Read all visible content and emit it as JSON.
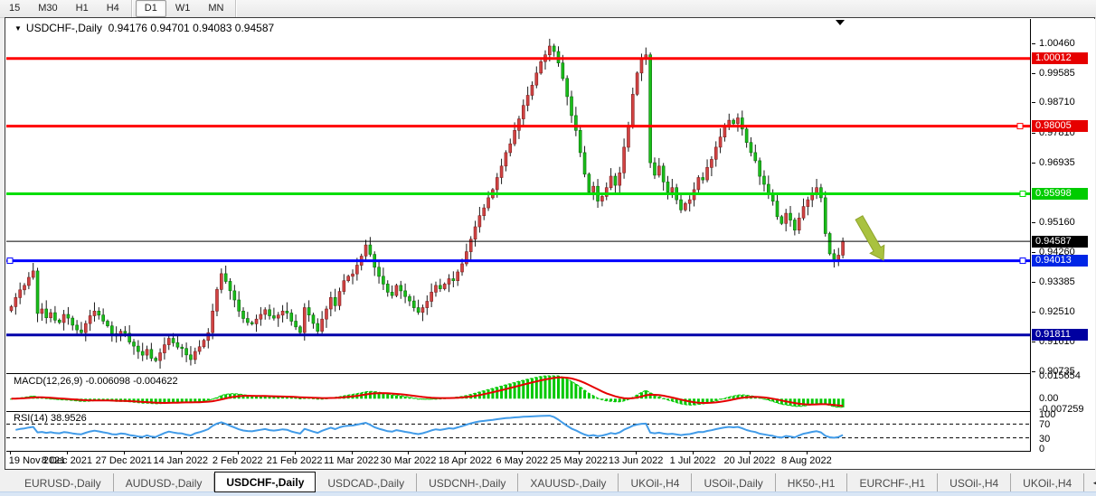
{
  "toolbar": {
    "timeframes": [
      "15",
      "M30",
      "H1",
      "H4",
      "D1",
      "W1",
      "MN"
    ],
    "active": "D1"
  },
  "chart": {
    "title": {
      "symbol": "USDCHF-,Daily",
      "open": "0.94176",
      "high": "0.94701",
      "low": "0.94083",
      "close": "0.94587"
    },
    "price_axis": {
      "ticks": [
        "1.00460",
        "0.99585",
        "0.98710",
        "0.97810",
        "0.96935",
        "0.95160",
        "0.94260",
        "0.93385",
        "0.92510",
        "0.91610",
        "0.90735"
      ]
    }
  },
  "chart_data": {
    "type": "candlestick",
    "symbol": "USDCHF",
    "timeframe": "Daily",
    "ylim": [
      0.90678,
      1.01184
    ],
    "x_labels": [
      "19 Nov 2021",
      "8 Dec 2021",
      "27 Dec 2021",
      "14 Jan 2022",
      "2 Feb 2022",
      "21 Feb 2022",
      "11 Mar 2022",
      "30 Mar 2022",
      "18 Apr 2022",
      "6 May 2022",
      "25 May 2022",
      "13 Jun 2022",
      "1 Jul 2022",
      "20 Jul 2022",
      "8 Aug 2022"
    ],
    "x_label_interval": 13,
    "candle_up_color": "#D24343",
    "candle_up_border": "#7e1f1f",
    "candle_down_color": "#19BE19",
    "candle_down_border": "#0b6b0b",
    "wick_color": "#1a1a1a",
    "closes": [
      0.9265,
      0.9292,
      0.9315,
      0.9328,
      0.9352,
      0.9371,
      0.9245,
      0.9258,
      0.9232,
      0.9247,
      0.9225,
      0.9218,
      0.9242,
      0.9231,
      0.921,
      0.9196,
      0.9188,
      0.9215,
      0.9238,
      0.9252,
      0.924,
      0.9222,
      0.9208,
      0.9185,
      0.9178,
      0.9192,
      0.9186,
      0.916,
      0.9148,
      0.9132,
      0.9121,
      0.9138,
      0.9112,
      0.9105,
      0.9128,
      0.9152,
      0.9171,
      0.9158,
      0.9145,
      0.9141,
      0.9122,
      0.9108,
      0.9132,
      0.9146,
      0.9165,
      0.9188,
      0.9252,
      0.9316,
      0.9363,
      0.934,
      0.9312,
      0.9285,
      0.9252,
      0.923,
      0.9218,
      0.9214,
      0.9228,
      0.9242,
      0.9256,
      0.9238,
      0.9231,
      0.924,
      0.9252,
      0.9246,
      0.9222,
      0.9205,
      0.9188,
      0.9262,
      0.924,
      0.9215,
      0.9192,
      0.9228,
      0.9258,
      0.9292,
      0.9268,
      0.931,
      0.9342,
      0.9355,
      0.9362,
      0.9388,
      0.9415,
      0.9448,
      0.942,
      0.9382,
      0.9355,
      0.9332,
      0.9308,
      0.9298,
      0.9328,
      0.9312,
      0.9295,
      0.9282,
      0.9262,
      0.9248,
      0.9262,
      0.9281,
      0.9308,
      0.9328,
      0.9318,
      0.9332,
      0.9348,
      0.9342,
      0.9368,
      0.9392,
      0.9428,
      0.9465,
      0.9502,
      0.9535,
      0.9558,
      0.9588,
      0.9612,
      0.9648,
      0.9682,
      0.9722,
      0.9748,
      0.9788,
      0.9822,
      0.9862,
      0.9892,
      0.9922,
      0.9958,
      0.9992,
      1.0012,
      1.0038,
      1.0022,
      0.9988,
      0.9942,
      0.9888,
      0.9832,
      0.9788,
      0.9722,
      0.9658,
      0.9605,
      0.9622,
      0.9578,
      0.9592,
      0.9618,
      0.9652,
      0.9625,
      0.9662,
      0.9738,
      0.9802,
      0.9895,
      0.9958,
      1.0002,
      1.0012,
      0.9692,
      0.9655,
      0.9682,
      0.9635,
      0.9605,
      0.9618,
      0.9582,
      0.9552,
      0.9571,
      0.9582,
      0.9612,
      0.9648,
      0.9641,
      0.9678,
      0.9702,
      0.9738,
      0.9768,
      0.9798,
      0.9818,
      0.9808,
      0.9825,
      0.9792,
      0.9752,
      0.9722,
      0.9698,
      0.9652,
      0.9628,
      0.9602,
      0.9578,
      0.9532,
      0.9512,
      0.9542,
      0.9522,
      0.9492,
      0.9528,
      0.9562,
      0.9582,
      0.9602,
      0.9618,
      0.9588,
      0.9482,
      0.9422,
      0.9405,
      0.94176,
      0.94587
    ],
    "levels": [
      {
        "label": "1.00012",
        "value": 1.00012,
        "color": "#FF0000",
        "width": 3,
        "badge_bg": "#E60000",
        "badge_fg": "#FFFFFF"
      },
      {
        "label": "0.98005",
        "value": 0.98005,
        "color": "#FF0000",
        "width": 3,
        "badge_bg": "#E60000",
        "badge_fg": "#FFFFFF",
        "handle_right": 1118
      },
      {
        "label": "0.95998",
        "value": 0.95998,
        "color": "#00DE00",
        "width": 3,
        "badge_bg": "#00CC00",
        "badge_fg": "#FFFFFF",
        "handle_right": 1121
      },
      {
        "label": "0.94587",
        "value": 0.94587,
        "color": "#000000",
        "width": 1,
        "badge_bg": "#000000",
        "badge_fg": "#FFFFFF"
      },
      {
        "label": "0.94013",
        "value": 0.94013,
        "color": "#0000FF",
        "width": 3,
        "badge_bg": "#0026E6",
        "badge_fg": "#FFFFFF",
        "handle_right": 1121,
        "handle_left": 1
      },
      {
        "label": "0.91811",
        "value": 0.91811,
        "color": "#0000AA",
        "width": 3,
        "badge_bg": "#0000A0",
        "badge_fg": "#FFFFFF"
      }
    ],
    "annotation_arrow": {
      "color": "#A9C23F",
      "edge": "#8ea32c",
      "from": [
        943,
        220
      ],
      "to": [
        970,
        267
      ]
    },
    "shift_marker_x": 922
  },
  "macd": {
    "label": "MACD(12,26,9)",
    "value_main": "-0.006098",
    "value_signal": "-0.004622",
    "params": [
      12,
      26,
      9
    ],
    "axis": [
      "0.015654",
      "0.00",
      "-0.007259"
    ],
    "hist_color": "#00C800",
    "signal_color": "#E60000"
  },
  "rsi": {
    "label": "RSI(14)",
    "value": "38.9526",
    "period": 14,
    "axis": [
      "100",
      "70",
      "30",
      "0"
    ],
    "levels": [
      70,
      30
    ],
    "line_color": "#419BE8"
  },
  "tabs": {
    "items": [
      "EURUSD-,Daily",
      "AUDUSD-,Daily",
      "USDCHF-,Daily",
      "USDCAD-,Daily",
      "USDCNH-,Daily",
      "XAUUSD-,Daily",
      "UKOil-,H4",
      "USOil-,Daily",
      "HK50-,H1",
      "EURCHF-,H1",
      "USOil-,H4",
      "UKOil-,H4"
    ],
    "active": "USDCHF-,Daily",
    "scroll_left": "◄",
    "scroll_right": "►"
  }
}
